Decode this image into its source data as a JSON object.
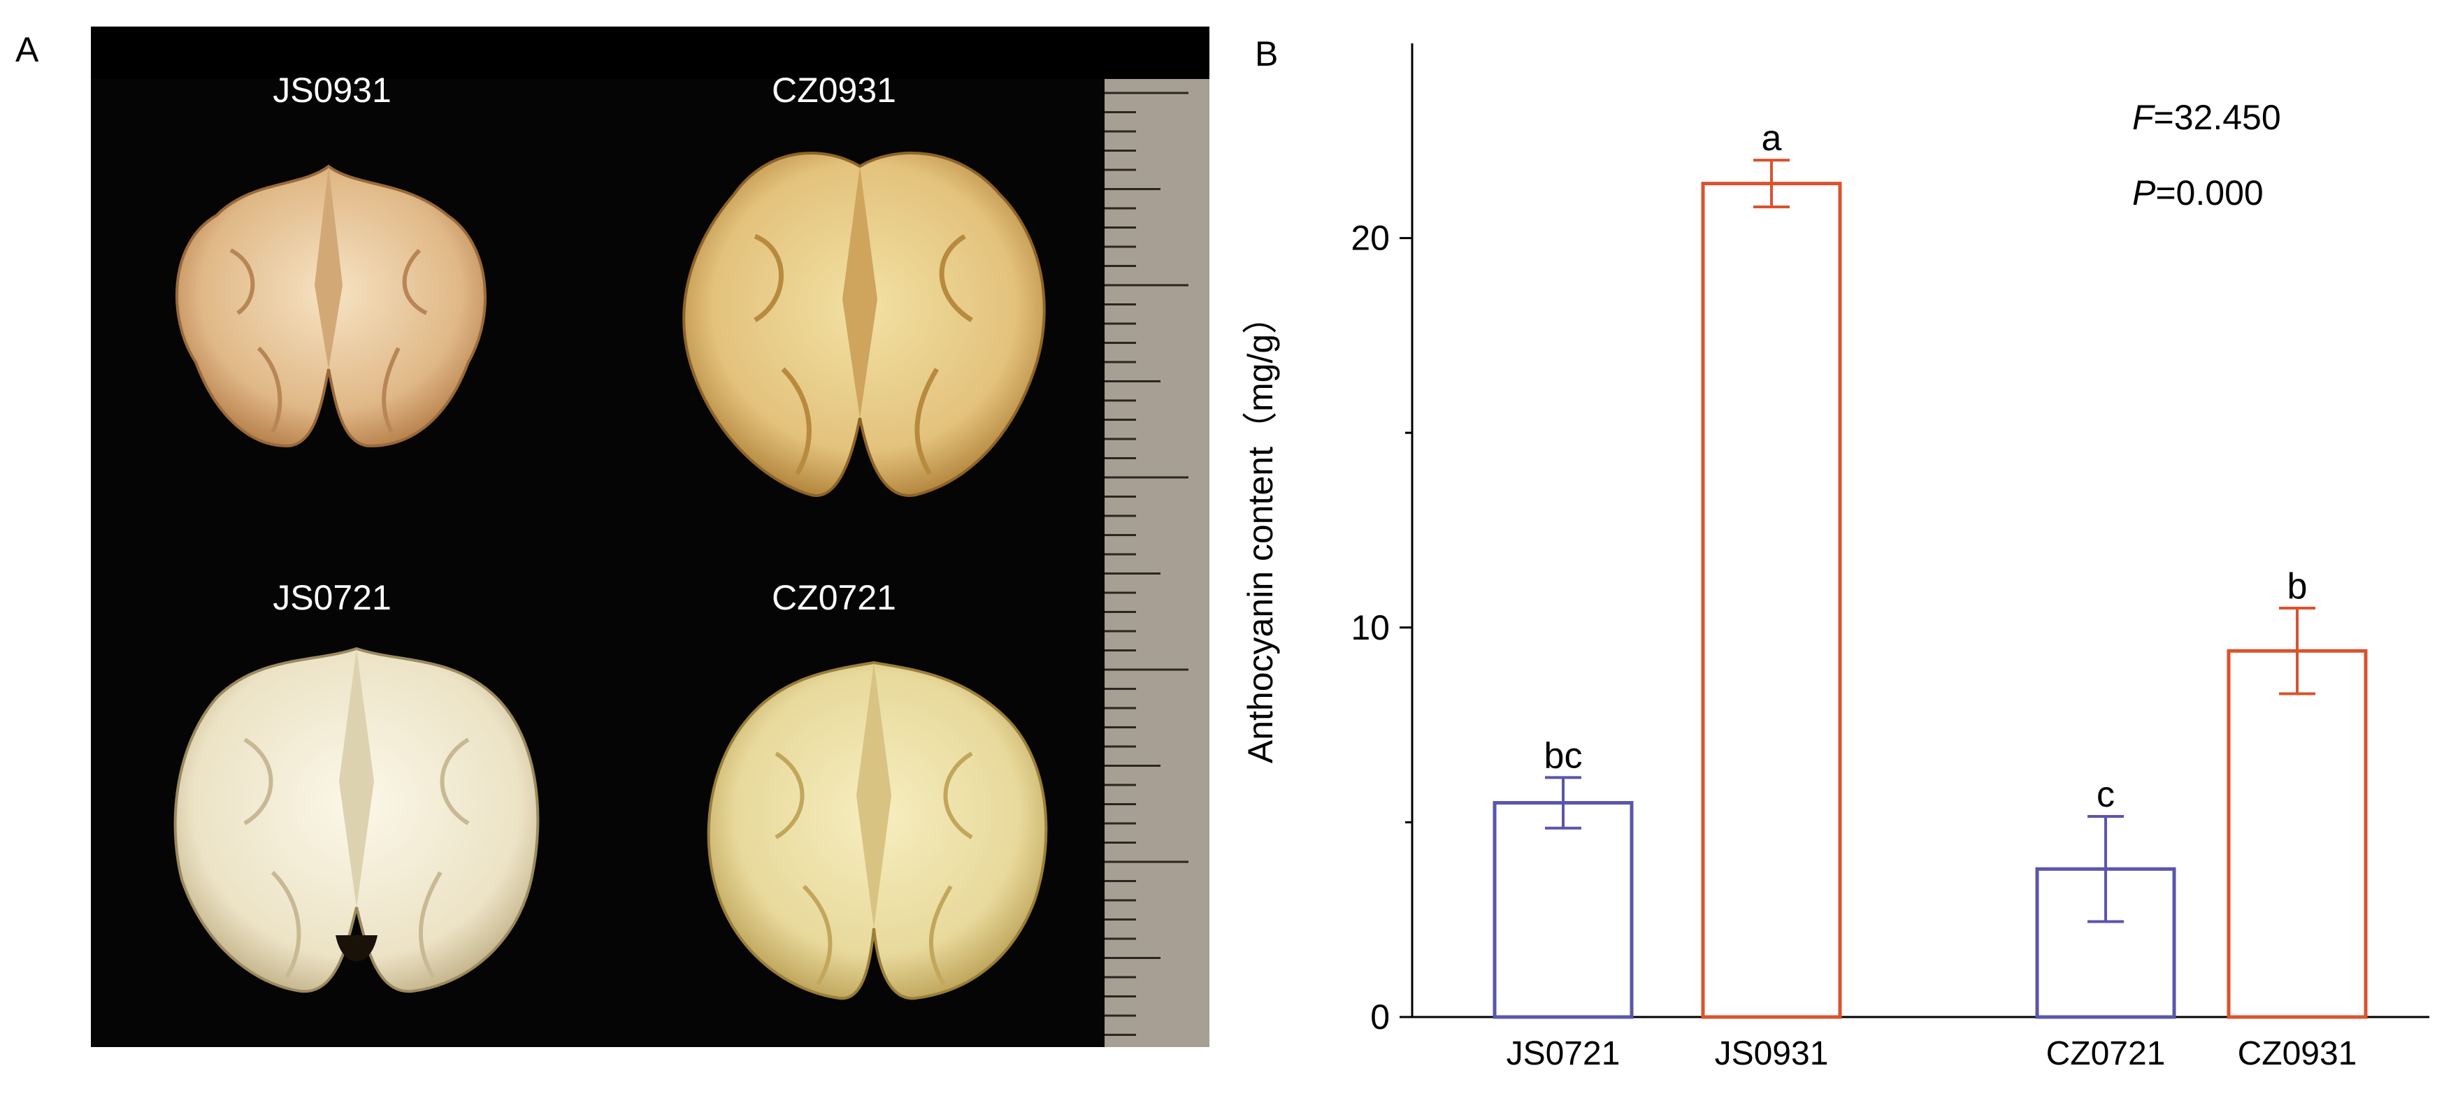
{
  "panel_a": {
    "label": "A",
    "photo_labels": [
      "JS0931",
      "CZ0931",
      "JS0721",
      "CZ0721"
    ]
  },
  "panel_b": {
    "label": "B"
  },
  "colors": {
    "js0721": "#5a55ac",
    "cz0721": "#5a55ac",
    "js0931": "#d9532e",
    "cz0931": "#d9532e",
    "axis": "#000000",
    "photo_bg": "#050505",
    "ruler": "#a79f93"
  },
  "chart_data": {
    "type": "bar",
    "categories": [
      "JS0721",
      "JS0931",
      "CZ0721",
      "CZ0931"
    ],
    "values": [
      5.5,
      21.4,
      3.8,
      9.4
    ],
    "errors": [
      0.65,
      0.6,
      1.35,
      1.1
    ],
    "significance": [
      "bc",
      "a",
      "c",
      "b"
    ],
    "ylabel": "Anthocyanin content（mg/g）",
    "ylim": [
      0,
      25
    ],
    "yticks": [
      "0",
      "10",
      "20"
    ],
    "stats": {
      "F_symbol": "F",
      "F_value": "=32.450",
      "P_symbol": "P",
      "P_value": "=0.000"
    },
    "grid": false,
    "legend": "none"
  }
}
